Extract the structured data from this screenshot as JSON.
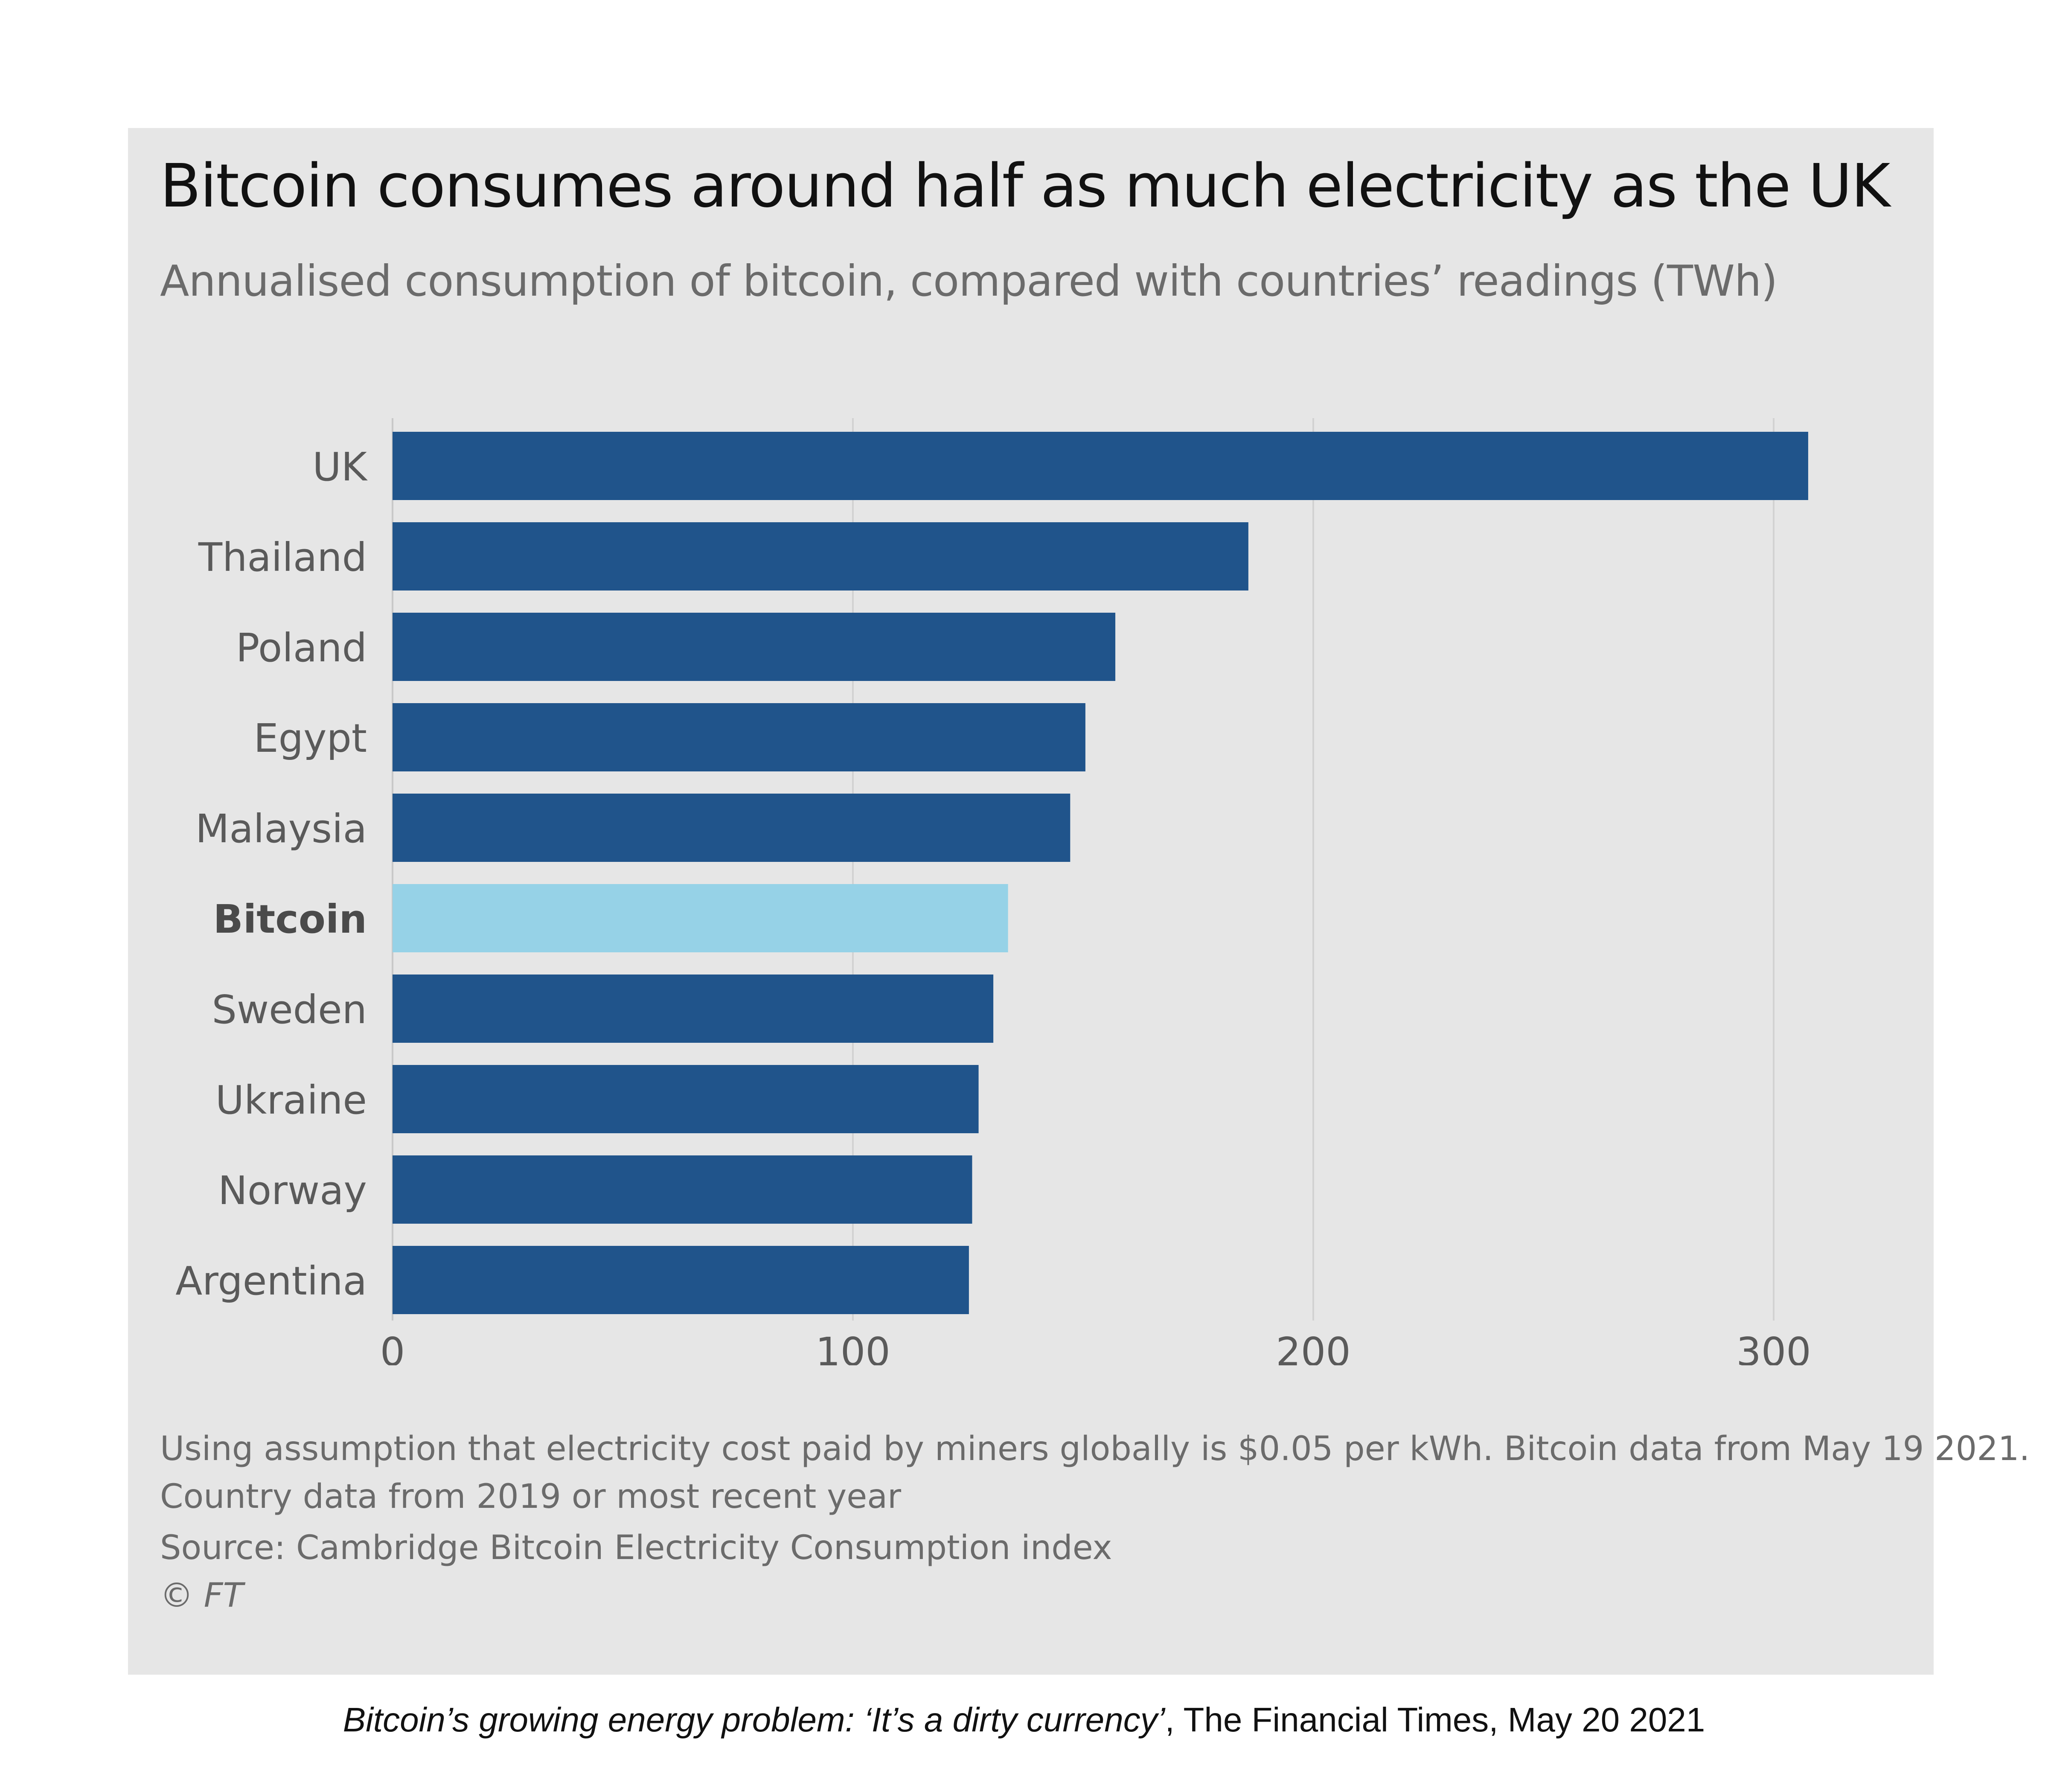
{
  "title": "Bitcoin consumes around half as much electricity as the UK",
  "subtitle": "Annualised consumption of bitcoin, compared with countries’ readings (TWh)",
  "colors": {
    "panel": "#e6e6e6",
    "bar": "#20548b",
    "highlight": "#96d2e7",
    "grid": "#d2d2d2",
    "label": "#5a5a5a"
  },
  "chart_data": {
    "type": "bar",
    "orientation": "horizontal",
    "categories": [
      "UK",
      "Thailand",
      "Poland",
      "Egypt",
      "Malaysia",
      "Bitcoin",
      "Sweden",
      "Ukraine",
      "Norway",
      "Argentina"
    ],
    "values": [
      307.5,
      185.9,
      157,
      150.5,
      147.2,
      133.7,
      130.5,
      127.3,
      125.9,
      125.2
    ],
    "highlight": "Bitcoin",
    "xlim": [
      0,
      320
    ],
    "xticks": [
      0,
      100,
      200,
      300
    ],
    "xtick_labels": [
      "0",
      "100",
      "200",
      "300"
    ],
    "grid": true,
    "xlabel": "",
    "ylabel": ""
  },
  "notes": {
    "line1": "Using assumption that electricity cost paid by miners globally is $0.05 per kWh. Bitcoin data from May 19 2021.",
    "line2": "Country data from 2019 or most recent year",
    "source": "Source: Cambridge Bitcoin Electricity Consumption index",
    "copyright": "© FT"
  },
  "caption": {
    "italic": "Bitcoin’s growing energy problem: ‘It’s a dirty currency’",
    "rest": ", The Financial Times, May 20 2021"
  }
}
